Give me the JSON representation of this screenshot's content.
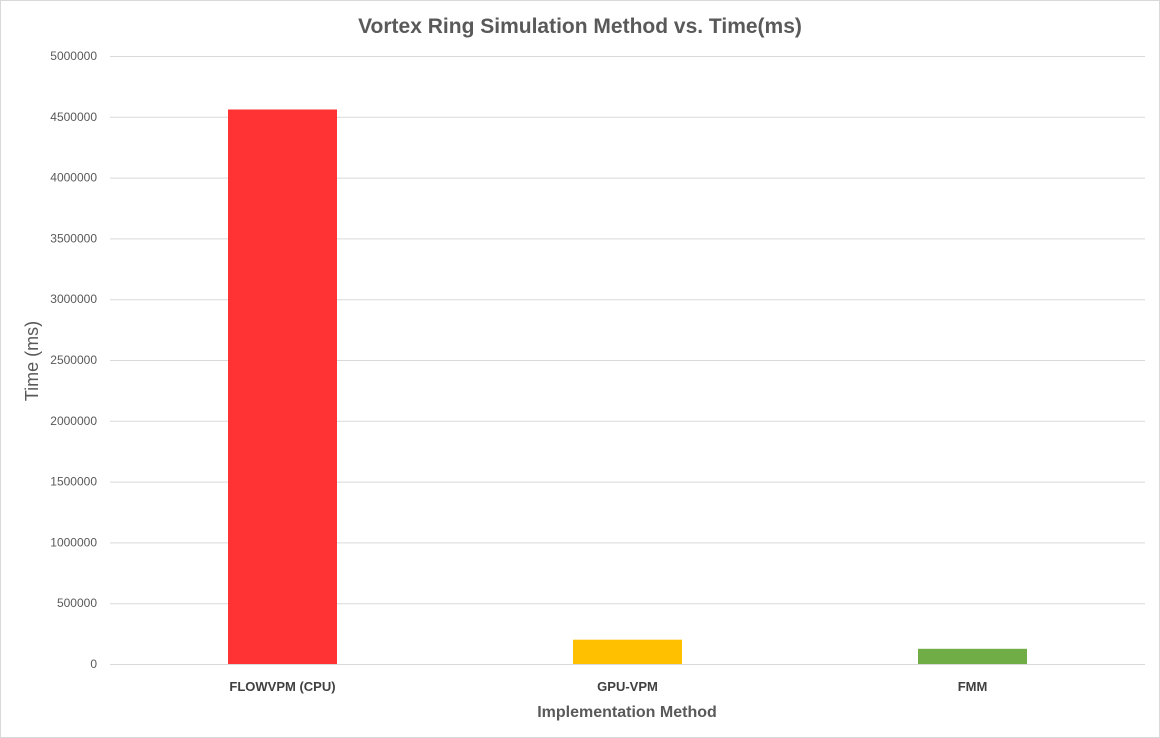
{
  "chart_data": {
    "type": "bar",
    "title": "Vortex Ring Simulation Method vs. Time(ms)",
    "xlabel": "Implementation Method",
    "ylabel": "Time (ms)",
    "categories": [
      "FLOWVPM (CPU)",
      "GPU-VPM",
      "FMM"
    ],
    "values": [
      4560000,
      200000,
      125000
    ],
    "colors": [
      "#ff3333",
      "#ffc000",
      "#70ad47"
    ],
    "ylim": [
      0,
      5000000
    ],
    "yticks": [
      "0",
      "500000",
      "1000000",
      "1500000",
      "2000000",
      "2500000",
      "3000000",
      "3500000",
      "4000000",
      "4500000",
      "5000000"
    ],
    "grid": true,
    "legend": "none"
  }
}
